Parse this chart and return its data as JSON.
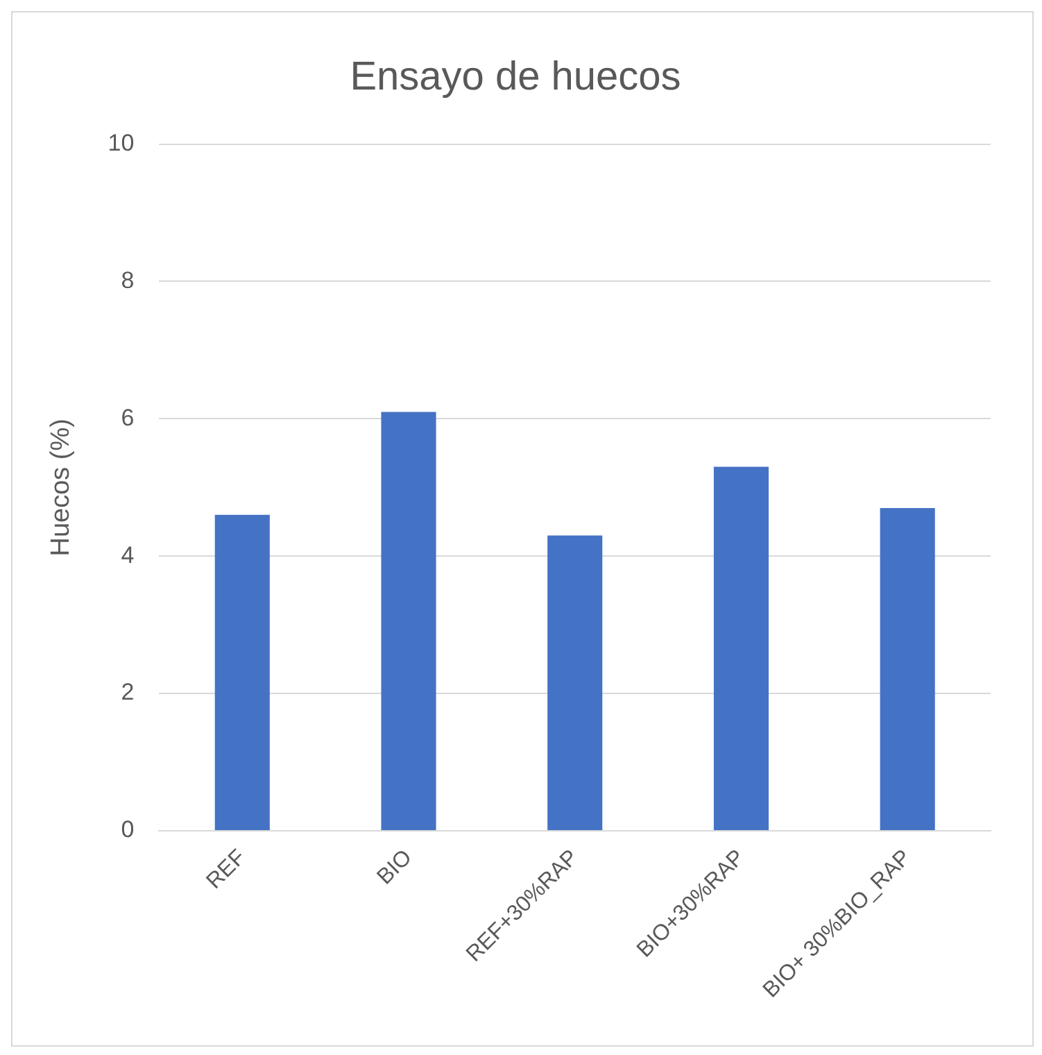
{
  "chart_data": {
    "type": "bar",
    "title": "Ensayo de huecos",
    "ylabel": "Huecos (%)",
    "categories": [
      "REF",
      "BIO",
      "REF+30%RAP",
      "BIO+30%RAP",
      "BIO+ 30%BIO_RAP"
    ],
    "values": [
      4.6,
      6.1,
      4.3,
      5.3,
      4.7
    ],
    "color": "#4472c4",
    "ylim": [
      0,
      10
    ],
    "yticks": [
      0,
      2,
      4,
      6,
      8,
      10
    ],
    "grid": "y",
    "legend": false
  }
}
